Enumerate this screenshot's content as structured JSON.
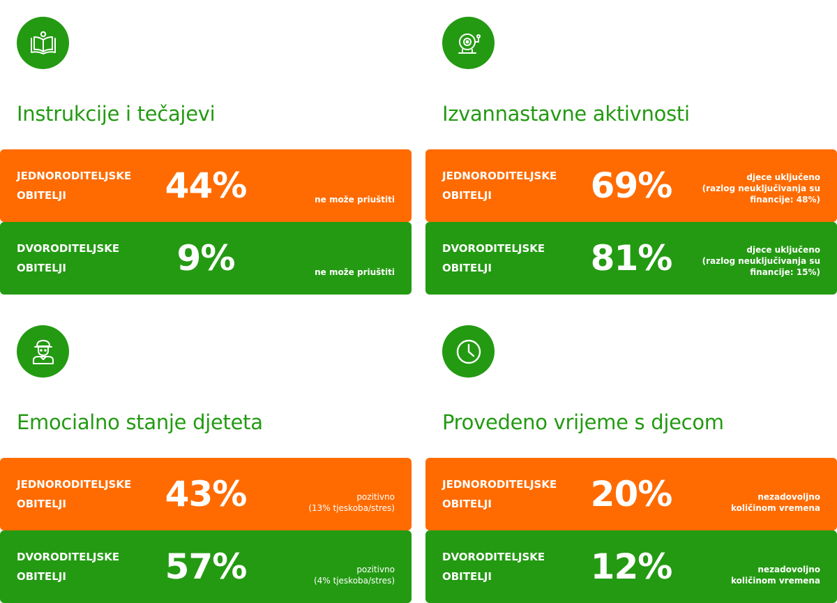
{
  "colors": {
    "green": "#239a12",
    "orange": "#ff6b00",
    "white": "#ffffff"
  },
  "sections": [
    {
      "icon": "open-book-icon",
      "title": "Instrukcije i tečajevi",
      "single": {
        "label": "JEDNORODITELJSKE\nOBITELJI",
        "value": "44%",
        "note": "ne može priuštiti"
      },
      "two": {
        "label": "DVORODITELJSKE\nOBITELJI",
        "value": "9%",
        "note": "ne može priuštiti"
      }
    },
    {
      "icon": "bell-icon",
      "title": "Izvannastavne aktivnosti",
      "single": {
        "label": "JEDNORODITELJSKE\nOBITELJI",
        "value": "69%",
        "note": "djece uključeno\n(razlog neuključivanja su\nfinancije: 48%)"
      },
      "two": {
        "label": "DVORODITELJSKE\nOBITELJI",
        "value": "81%",
        "note": "djece uključeno\n(razlog neuključivanja su\nfinancije: 15%)"
      }
    },
    {
      "icon": "child-icon",
      "title": "Emocialno stanje djeteta",
      "single": {
        "label": "JEDNORODITELJSKE\nOBITELJI",
        "value": "43%",
        "note": "pozitivno\n(13% tjeskoba/stres)"
      },
      "two": {
        "label": "DVORODITELJSKE\nOBITELJI",
        "value": "57%",
        "note": "pozitivno\n(4% tjeskoba/stres)"
      }
    },
    {
      "icon": "clock-icon",
      "title": "Provedeno vrijeme s djecom",
      "single": {
        "label": "JEDNORODITELJSKE\nOBITELJI",
        "value": "20%",
        "note": "nezadovoljno\nkoličinom vremena"
      },
      "two": {
        "label": "DVORODITELJSKE\nOBITELJI",
        "value": "12%",
        "note": "nezadovoljno\nkoličinom vremena"
      }
    }
  ]
}
